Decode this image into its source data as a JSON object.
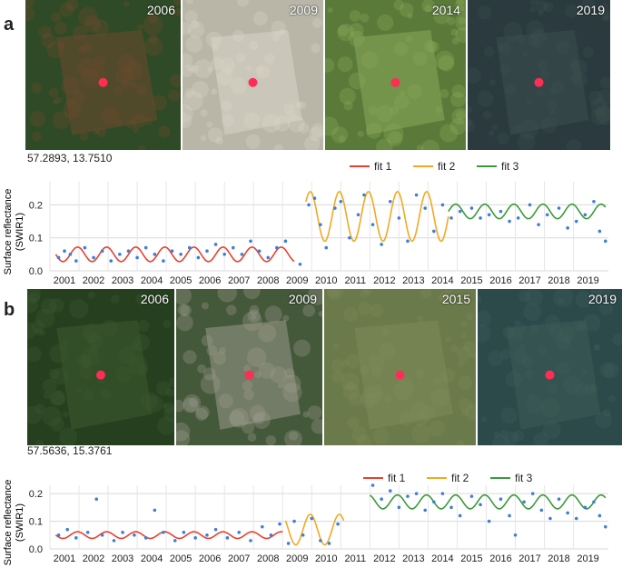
{
  "panels": [
    {
      "letter": "a",
      "coords": "57.2893, 13.7510",
      "photos": [
        {
          "year": "2006",
          "base": "#2f4a26",
          "tint": "#6e4a2e"
        },
        {
          "year": "2009",
          "base": "#b9b6a8",
          "tint": "#d8d4c6"
        },
        {
          "year": "2014",
          "base": "#5a7a3a",
          "tint": "#8aa85a"
        },
        {
          "year": "2019",
          "base": "#2a3a3e",
          "tint": "#3d4f4e"
        }
      ]
    },
    {
      "letter": "b",
      "coords": "57.5636, 15.3761",
      "photos": [
        {
          "year": "2006",
          "base": "#26401f",
          "tint": "#3d5a30"
        },
        {
          "year": "2009",
          "base": "#44583a",
          "tint": "#9a9a8c"
        },
        {
          "year": "2015",
          "base": "#6a7a4a",
          "tint": "#7d8a5a"
        },
        {
          "year": "2019",
          "base": "#2c4a4a",
          "tint": "#3e5c58"
        }
      ]
    }
  ],
  "chart_data": [
    {
      "type": "line",
      "ylabel": "Surface reflectance (SWIR1)",
      "ylim": [
        0,
        0.27
      ],
      "yticks": [
        "0.0",
        "0.1",
        "0.2"
      ],
      "xlim": [
        2000.5,
        2019.7
      ],
      "xticks": [
        "2001",
        "2002",
        "2003",
        "2004",
        "2005",
        "2006",
        "2007",
        "2008",
        "2009",
        "2010",
        "2011",
        "2012",
        "2013",
        "2014",
        "2015",
        "2016",
        "2017",
        "2018",
        "2019"
      ],
      "grid": true,
      "legend_position": "top-right",
      "series": [
        {
          "name": "fit 1",
          "color": "#e8402e",
          "x_start": 2000.7,
          "x_end": 2008.9,
          "mean": 0.05,
          "amp": 0.022
        },
        {
          "name": "fit 2",
          "color": "#f2a922",
          "x_start": 2009.3,
          "x_end": 2014.2,
          "mean": 0.165,
          "amp": 0.075
        },
        {
          "name": "fit 3",
          "color": "#3a9a3a",
          "x_start": 2014.2,
          "x_end": 2019.6,
          "mean": 0.18,
          "amp": 0.022
        }
      ],
      "points_color": "#3d7fd6",
      "points": [
        [
          2000.8,
          0.04
        ],
        [
          2001.0,
          0.06
        ],
        [
          2001.2,
          0.05
        ],
        [
          2001.4,
          0.03
        ],
        [
          2001.7,
          0.07
        ],
        [
          2002.0,
          0.04
        ],
        [
          2002.3,
          0.06
        ],
        [
          2002.6,
          0.03
        ],
        [
          2002.9,
          0.05
        ],
        [
          2003.2,
          0.06
        ],
        [
          2003.5,
          0.04
        ],
        [
          2003.8,
          0.07
        ],
        [
          2004.1,
          0.05
        ],
        [
          2004.4,
          0.03
        ],
        [
          2004.7,
          0.06
        ],
        [
          2005.0,
          0.05
        ],
        [
          2005.3,
          0.07
        ],
        [
          2005.6,
          0.04
        ],
        [
          2005.9,
          0.06
        ],
        [
          2006.2,
          0.08
        ],
        [
          2006.5,
          0.05
        ],
        [
          2006.8,
          0.07
        ],
        [
          2007.1,
          0.05
        ],
        [
          2007.4,
          0.09
        ],
        [
          2007.7,
          0.06
        ],
        [
          2008.0,
          0.04
        ],
        [
          2008.3,
          0.07
        ],
        [
          2008.6,
          0.09
        ],
        [
          2009.1,
          0.02
        ],
        [
          2009.4,
          0.2
        ],
        [
          2009.6,
          0.22
        ],
        [
          2009.8,
          0.14
        ],
        [
          2010.0,
          0.07
        ],
        [
          2010.3,
          0.19
        ],
        [
          2010.5,
          0.21
        ],
        [
          2010.8,
          0.1
        ],
        [
          2011.1,
          0.17
        ],
        [
          2011.3,
          0.23
        ],
        [
          2011.6,
          0.14
        ],
        [
          2011.9,
          0.08
        ],
        [
          2012.2,
          0.21
        ],
        [
          2012.5,
          0.16
        ],
        [
          2012.8,
          0.09
        ],
        [
          2013.1,
          0.23
        ],
        [
          2013.4,
          0.19
        ],
        [
          2013.7,
          0.12
        ],
        [
          2014.0,
          0.2
        ],
        [
          2014.3,
          0.16
        ],
        [
          2014.6,
          0.18
        ],
        [
          2015.0,
          0.19
        ],
        [
          2015.3,
          0.16
        ],
        [
          2015.6,
          0.17
        ],
        [
          2016.0,
          0.18
        ],
        [
          2016.3,
          0.15
        ],
        [
          2016.6,
          0.16
        ],
        [
          2017.0,
          0.2
        ],
        [
          2017.3,
          0.14
        ],
        [
          2017.6,
          0.17
        ],
        [
          2018.0,
          0.19
        ],
        [
          2018.3,
          0.13
        ],
        [
          2018.6,
          0.15
        ],
        [
          2018.9,
          0.17
        ],
        [
          2019.2,
          0.21
        ],
        [
          2019.4,
          0.12
        ],
        [
          2019.6,
          0.09
        ]
      ]
    },
    {
      "type": "line",
      "ylabel": "Surface reflectance (SWIR1)",
      "ylim": [
        0,
        0.23
      ],
      "yticks": [
        "0.0",
        "0.1",
        "0.2"
      ],
      "xlim": [
        2000.5,
        2019.7
      ],
      "xticks": [
        "2001",
        "2002",
        "2003",
        "2004",
        "2005",
        "2006",
        "2007",
        "2008",
        "2009",
        "2010",
        "2011",
        "2012",
        "2013",
        "2014",
        "2015",
        "2016",
        "2017",
        "2018",
        "2019"
      ],
      "grid": true,
      "legend_position": "top-right",
      "series": [
        {
          "name": "fit 1",
          "color": "#e8402e",
          "x_start": 2000.7,
          "x_end": 2008.5,
          "mean": 0.05,
          "amp": 0.012
        },
        {
          "name": "fit 2",
          "color": "#f2a922",
          "x_start": 2008.6,
          "x_end": 2010.6,
          "mean": 0.07,
          "amp": 0.055
        },
        {
          "name": "fit 3",
          "color": "#3a9a3a",
          "x_start": 2011.5,
          "x_end": 2019.6,
          "mean": 0.17,
          "amp": 0.025
        }
      ],
      "points_color": "#3d7fd6",
      "points": [
        [
          2000.8,
          0.05
        ],
        [
          2001.1,
          0.07
        ],
        [
          2001.4,
          0.04
        ],
        [
          2001.8,
          0.06
        ],
        [
          2002.1,
          0.18
        ],
        [
          2002.3,
          0.05
        ],
        [
          2002.7,
          0.03
        ],
        [
          2003.0,
          0.06
        ],
        [
          2003.4,
          0.05
        ],
        [
          2003.8,
          0.04
        ],
        [
          2004.1,
          0.14
        ],
        [
          2004.4,
          0.06
        ],
        [
          2004.8,
          0.03
        ],
        [
          2005.1,
          0.06
        ],
        [
          2005.5,
          0.04
        ],
        [
          2005.9,
          0.05
        ],
        [
          2006.2,
          0.07
        ],
        [
          2006.6,
          0.04
        ],
        [
          2007.0,
          0.06
        ],
        [
          2007.4,
          0.03
        ],
        [
          2007.8,
          0.08
        ],
        [
          2008.1,
          0.05
        ],
        [
          2008.4,
          0.09
        ],
        [
          2008.7,
          0.02
        ],
        [
          2008.9,
          0.1
        ],
        [
          2009.2,
          0.05
        ],
        [
          2009.5,
          0.11
        ],
        [
          2009.8,
          0.03
        ],
        [
          2010.1,
          0.02
        ],
        [
          2010.4,
          0.09
        ],
        [
          2011.6,
          0.23
        ],
        [
          2011.9,
          0.18
        ],
        [
          2012.2,
          0.21
        ],
        [
          2012.5,
          0.15
        ],
        [
          2012.8,
          0.19
        ],
        [
          2013.1,
          0.2
        ],
        [
          2013.4,
          0.14
        ],
        [
          2013.7,
          0.17
        ],
        [
          2014.0,
          0.2
        ],
        [
          2014.3,
          0.15
        ],
        [
          2014.6,
          0.12
        ],
        [
          2015.0,
          0.19
        ],
        [
          2015.3,
          0.16
        ],
        [
          2015.6,
          0.1
        ],
        [
          2016.0,
          0.18
        ],
        [
          2016.3,
          0.12
        ],
        [
          2016.5,
          0.05
        ],
        [
          2016.8,
          0.17
        ],
        [
          2017.1,
          0.2
        ],
        [
          2017.4,
          0.14
        ],
        [
          2017.7,
          0.11
        ],
        [
          2018.0,
          0.18
        ],
        [
          2018.3,
          0.13
        ],
        [
          2018.6,
          0.11
        ],
        [
          2018.9,
          0.15
        ],
        [
          2019.2,
          0.17
        ],
        [
          2019.4,
          0.12
        ],
        [
          2019.6,
          0.08
        ]
      ]
    }
  ]
}
